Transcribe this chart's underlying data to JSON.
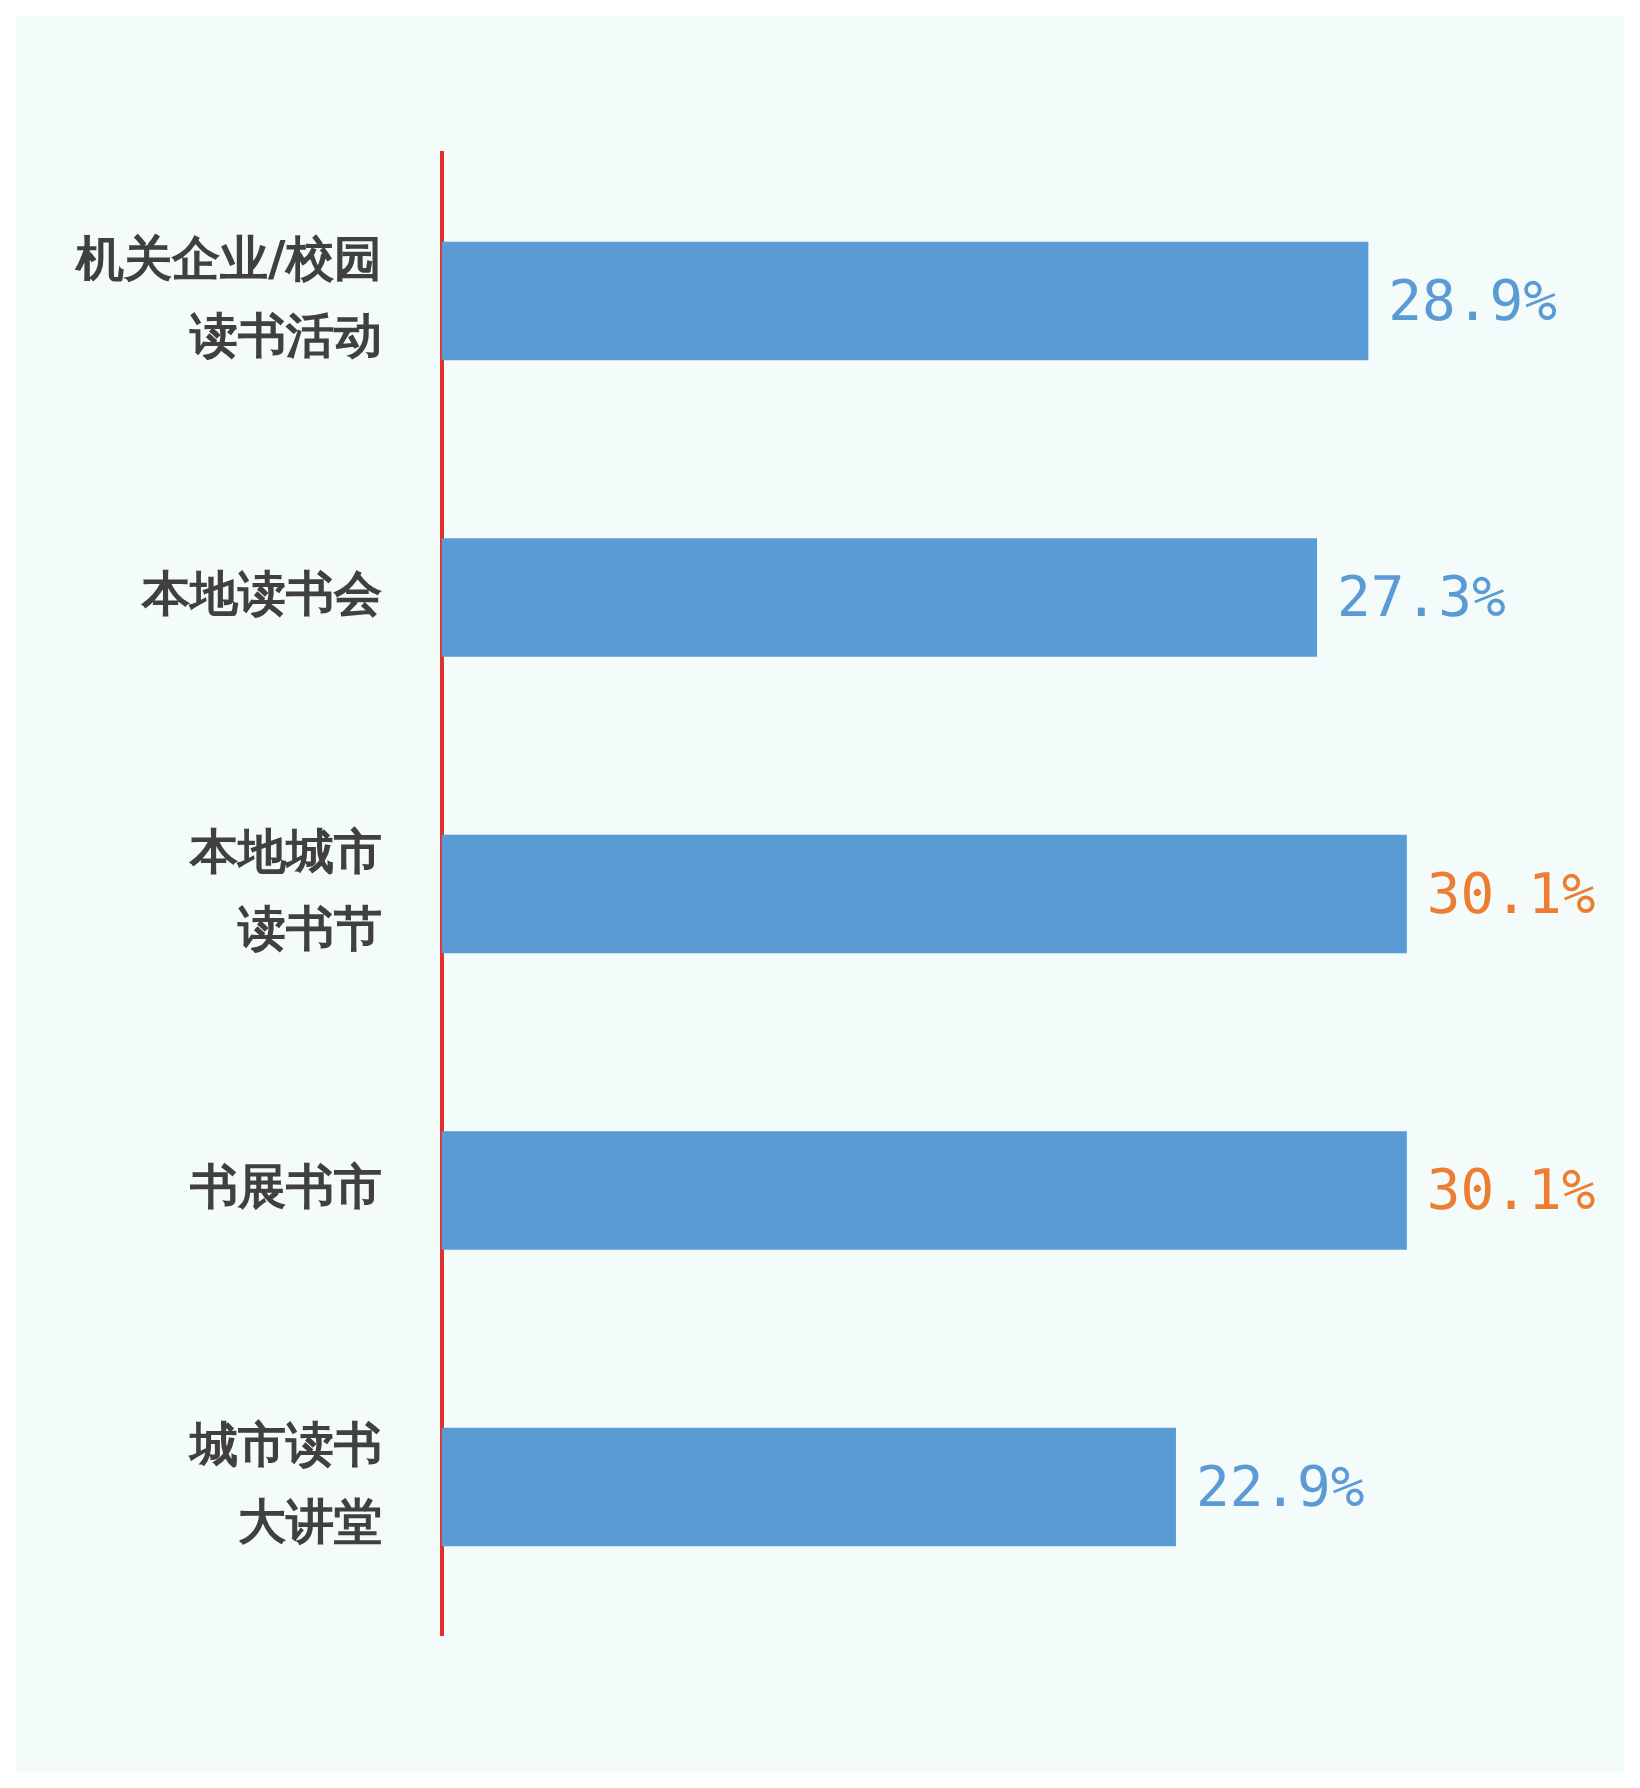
{
  "chart_data": {
    "type": "bar",
    "orientation": "horizontal",
    "categories": [
      "机关企业/校园读书活动",
      "本地读书会",
      "本地城市读书节",
      "书展书市",
      "城市读书大讲堂"
    ],
    "values": [
      28.9,
      27.3,
      30.1,
      30.1,
      22.9
    ],
    "color": "#5b9bd5",
    "value_labels": [
      "28.9%",
      "27.3%",
      "30.1%",
      "30.1%",
      "22.9%"
    ],
    "grid": false,
    "legend": false
  }
}
